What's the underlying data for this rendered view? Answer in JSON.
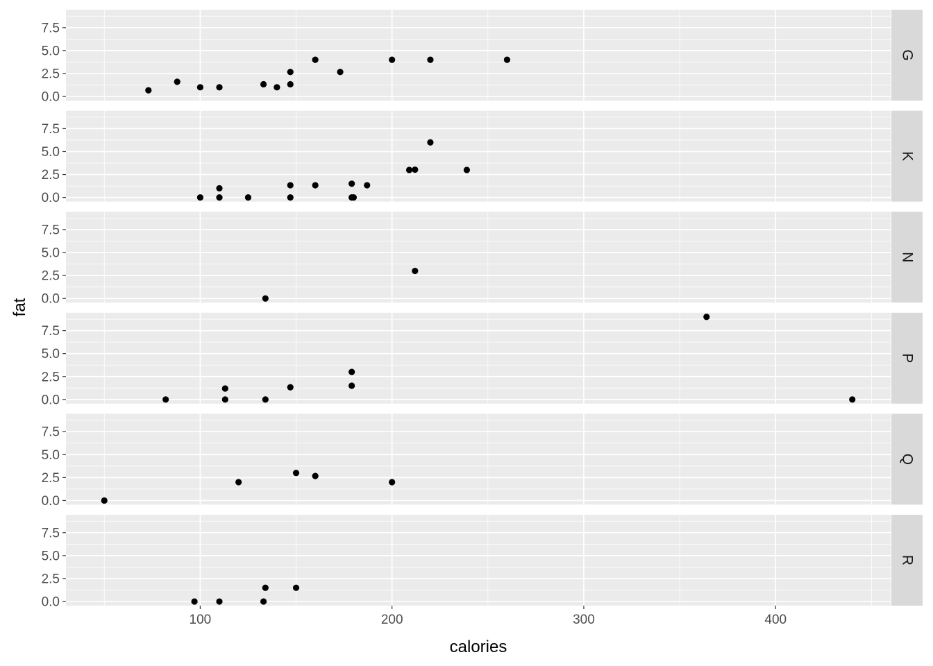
{
  "chart_data": {
    "type": "scatter",
    "xlabel": "calories",
    "ylabel": "fat",
    "xlim": [
      30,
      460
    ],
    "ylim": [
      -0.45,
      9.45
    ],
    "x_ticks": [
      100,
      200,
      300,
      400
    ],
    "x_tick_labels": [
      "100",
      "200",
      "300",
      "400"
    ],
    "y_ticks": [
      0,
      2.5,
      5,
      7.5
    ],
    "y_tick_labels": [
      "0.0",
      "2.5",
      "5.0",
      "7.5"
    ],
    "facet_direction": "rows",
    "strip_position": "right",
    "grid": true,
    "colors": {
      "panel_background": "#ebebeb",
      "grid_line": "#ffffff",
      "strip_background": "#d9d9d9",
      "point": "#000000",
      "tick_text": "#4d4d4d"
    },
    "panels": [
      {
        "label": "G",
        "points": [
          {
            "x": 73,
            "y": 0.67
          },
          {
            "x": 88,
            "y": 1.6
          },
          {
            "x": 100,
            "y": 1.0
          },
          {
            "x": 110,
            "y": 1.0
          },
          {
            "x": 133,
            "y": 1.33
          },
          {
            "x": 140,
            "y": 1.0
          },
          {
            "x": 147,
            "y": 1.33
          },
          {
            "x": 147,
            "y": 2.67
          },
          {
            "x": 160,
            "y": 4.0
          },
          {
            "x": 173,
            "y": 2.67
          },
          {
            "x": 200,
            "y": 4.0
          },
          {
            "x": 220,
            "y": 4.0
          },
          {
            "x": 260,
            "y": 4.0
          }
        ]
      },
      {
        "label": "K",
        "points": [
          {
            "x": 100,
            "y": 0.0
          },
          {
            "x": 110,
            "y": 0.0
          },
          {
            "x": 110,
            "y": 1.0
          },
          {
            "x": 125,
            "y": 0.0
          },
          {
            "x": 147,
            "y": 0.0
          },
          {
            "x": 147,
            "y": 1.33
          },
          {
            "x": 160,
            "y": 1.33
          },
          {
            "x": 179,
            "y": 0.0
          },
          {
            "x": 180,
            "y": 0.0
          },
          {
            "x": 179,
            "y": 1.5
          },
          {
            "x": 187,
            "y": 1.33
          },
          {
            "x": 209,
            "y": 3.0
          },
          {
            "x": 212,
            "y": 3.03
          },
          {
            "x": 220,
            "y": 6.0
          },
          {
            "x": 239,
            "y": 3.0
          }
        ]
      },
      {
        "label": "N",
        "points": [
          {
            "x": 134,
            "y": 0.0
          },
          {
            "x": 212,
            "y": 3.0
          }
        ]
      },
      {
        "label": "P",
        "points": [
          {
            "x": 82,
            "y": 0.0
          },
          {
            "x": 113,
            "y": 0.0
          },
          {
            "x": 113,
            "y": 1.2
          },
          {
            "x": 134,
            "y": 0.0
          },
          {
            "x": 147,
            "y": 1.33
          },
          {
            "x": 179,
            "y": 1.5
          },
          {
            "x": 179,
            "y": 3.0
          },
          {
            "x": 364,
            "y": 9.0
          },
          {
            "x": 440,
            "y": 0.0
          }
        ]
      },
      {
        "label": "Q",
        "points": [
          {
            "x": 50,
            "y": 0.0
          },
          {
            "x": 120,
            "y": 2.0
          },
          {
            "x": 150,
            "y": 3.0
          },
          {
            "x": 160,
            "y": 2.67
          },
          {
            "x": 200,
            "y": 2.0
          }
        ]
      },
      {
        "label": "R",
        "points": [
          {
            "x": 97,
            "y": 0.0
          },
          {
            "x": 110,
            "y": 0.0
          },
          {
            "x": 133,
            "y": 0.0
          },
          {
            "x": 134,
            "y": 1.5
          },
          {
            "x": 150,
            "y": 1.5
          }
        ]
      }
    ]
  }
}
